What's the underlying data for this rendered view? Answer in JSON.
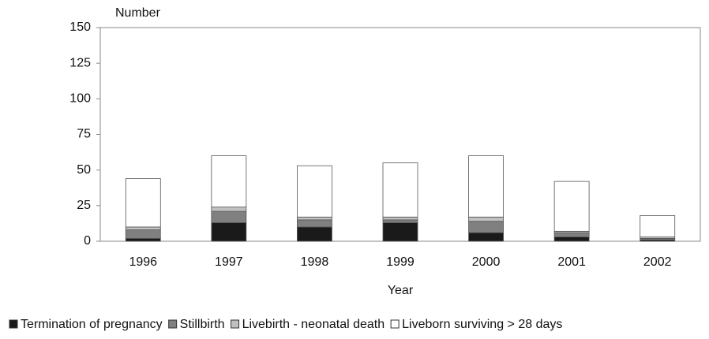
{
  "chart_data": {
    "type": "stacked_bar",
    "ylabel": "Number",
    "xlabel": "Year",
    "categories": [
      "1996",
      "1997",
      "1998",
      "1999",
      "2000",
      "2001",
      "2002"
    ],
    "series": [
      {
        "name": "Termination of pregnancy",
        "color": "#1a1a1a",
        "values": [
          2,
          13,
          10,
          13,
          6,
          3,
          1
        ]
      },
      {
        "name": "Stillbirth",
        "color": "#808080",
        "values": [
          6,
          8,
          5,
          2,
          8,
          3,
          1
        ]
      },
      {
        "name": "Livebirth - neonatal death",
        "color": "#c0c0c0",
        "values": [
          2,
          3,
          2,
          2,
          3,
          1,
          1
        ]
      },
      {
        "name": "Liveborn surviving > 28 days",
        "color": "#ffffff",
        "values": [
          34,
          36,
          36,
          38,
          43,
          35,
          15
        ]
      }
    ],
    "ylim": [
      0,
      150
    ],
    "yticks": [
      0,
      25,
      50,
      75,
      100,
      125,
      150
    ],
    "grid": false,
    "legend": "bottom"
  }
}
